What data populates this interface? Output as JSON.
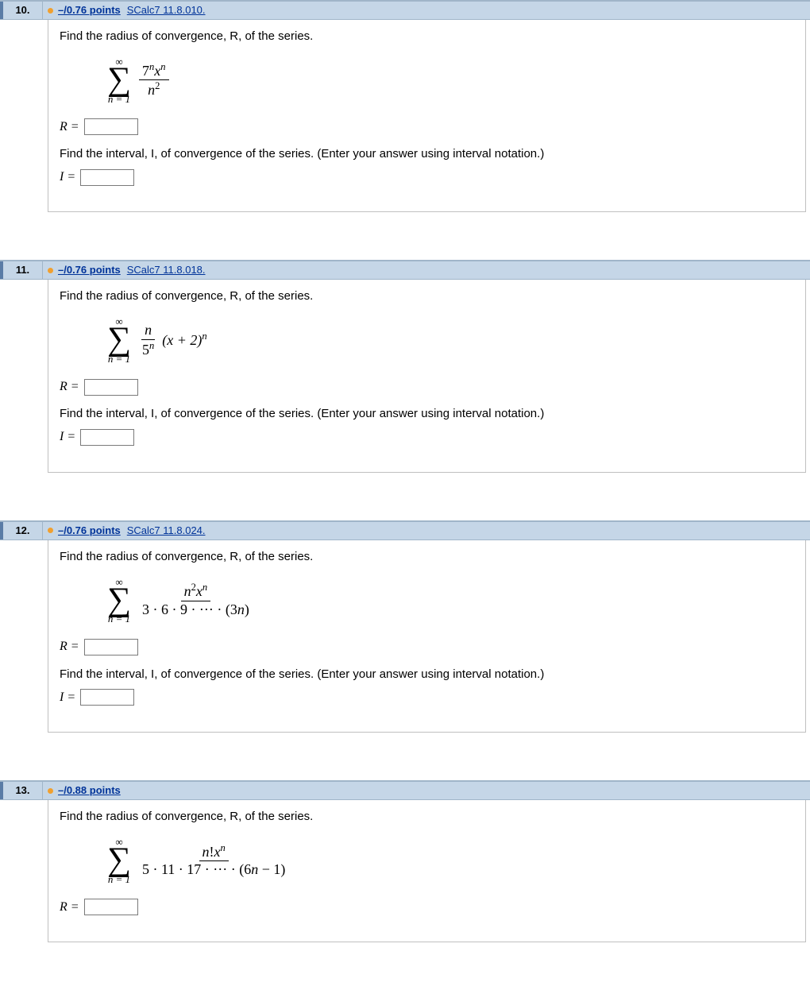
{
  "questions": [
    {
      "number": "10.",
      "points": "–/0.76 points",
      "source": "SCalc7 11.8.010.",
      "prompt1": "Find the radius of convergence, R, of the series.",
      "sigma_top": "∞",
      "sigma_bottom": "n = 1",
      "frac_num": "7<span class='sup'>n</span><span class='it'>x</span><span class='sup'>n</span>",
      "frac_den": "<span class='it'>n</span><span style='font-size:0.7em;vertical-align:super'>2</span>",
      "extra": "",
      "r_label": "R =",
      "prompt2": "Find the interval, I, of convergence of the series. (Enter your answer using interval notation.)",
      "i_label": "I =",
      "show_interval": true
    },
    {
      "number": "11.",
      "points": "–/0.76 points",
      "source": "SCalc7 11.8.018.",
      "prompt1": "Find the radius of convergence, R, of the series.",
      "sigma_top": "∞",
      "sigma_bottom": "n = 1",
      "frac_num": "<span class='it'>n</span>",
      "frac_den": "5<span class='sup'>n</span>",
      "extra": "(x + 2)<span class='sup'>n</span>",
      "r_label": "R =",
      "prompt2": "Find the interval, I, of convergence of the series. (Enter your answer using interval notation.)",
      "i_label": "I =",
      "show_interval": true
    },
    {
      "number": "12.",
      "points": "–/0.76 points",
      "source": "SCalc7 11.8.024.",
      "prompt1": "Find the radius of convergence, R, of the series.",
      "sigma_top": "∞",
      "sigma_bottom": "n = 1",
      "frac_num": "<span class='it'>n</span><span style='font-size:0.7em;vertical-align:super'>2</span><span class='it'>x</span><span class='sup'>n</span>",
      "frac_den": "3 · 6 · 9 · ··· · (3<span class='it'>n</span>)",
      "extra": "",
      "r_label": "R =",
      "prompt2": "Find the interval, I, of convergence of the series. (Enter your answer using interval notation.)",
      "i_label": "I =",
      "show_interval": true
    },
    {
      "number": "13.",
      "points": "–/0.88 points",
      "source": "",
      "prompt1": "Find the radius of convergence, R, of the series.",
      "sigma_top": "∞",
      "sigma_bottom": "n = 1",
      "frac_num": "<span class='it'>n</span>!<span class='it'>x</span><span class='sup'>n</span>",
      "frac_den": "5 · 11 · 17 · ··· · (6<span class='it'>n</span> − 1)",
      "extra": "",
      "r_label": "R =",
      "prompt2": "",
      "i_label": "",
      "show_interval": false
    }
  ]
}
